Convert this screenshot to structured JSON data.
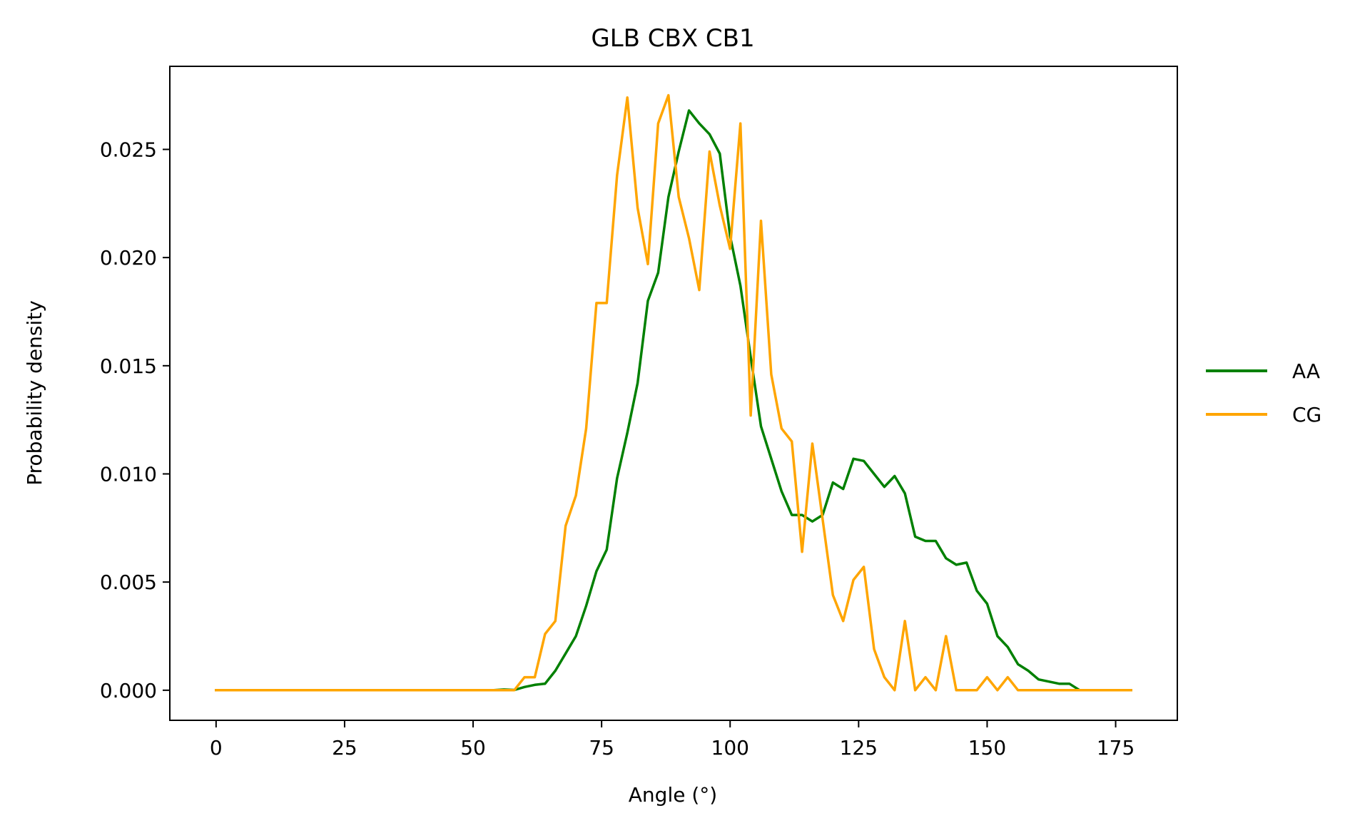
{
  "chart_data": {
    "type": "line",
    "title": "GLB CBX CB1",
    "xlabel": "Angle (°)",
    "ylabel": "Probability density",
    "xlim": [
      -9,
      187
    ],
    "ylim": [
      -0.00139,
      0.02884
    ],
    "xticks": [
      0,
      25,
      50,
      75,
      100,
      125,
      150,
      175
    ],
    "yticks": [
      0.0,
      0.005,
      0.01,
      0.015,
      0.02,
      0.025
    ],
    "ytick_labels": [
      "0.000",
      "0.005",
      "0.010",
      "0.015",
      "0.020",
      "0.025"
    ],
    "grid": false,
    "legend": "right-outside",
    "x": [
      0,
      2,
      4,
      6,
      8,
      10,
      12,
      14,
      16,
      18,
      20,
      22,
      24,
      26,
      28,
      30,
      32,
      34,
      36,
      38,
      40,
      42,
      44,
      46,
      48,
      50,
      52,
      54,
      56,
      58,
      60,
      62,
      64,
      66,
      68,
      70,
      72,
      74,
      76,
      78,
      80,
      82,
      84,
      86,
      88,
      90,
      92,
      94,
      96,
      98,
      100,
      102,
      104,
      106,
      108,
      110,
      112,
      114,
      116,
      118,
      120,
      122,
      124,
      126,
      128,
      130,
      132,
      134,
      136,
      138,
      140,
      142,
      144,
      146,
      148,
      150,
      152,
      154,
      156,
      158,
      160,
      162,
      164,
      166,
      168,
      170,
      172,
      174,
      176,
      178
    ],
    "series": [
      {
        "name": "AA",
        "color": "#008000",
        "values": [
          0,
          0,
          0,
          0,
          0,
          0,
          0,
          0,
          0,
          0,
          0,
          0,
          0,
          0,
          0,
          0,
          0,
          0,
          0,
          0,
          0,
          0,
          0,
          0,
          0,
          0,
          0,
          0,
          3e-05,
          1e-05,
          0.00015,
          0.00025,
          0.0003,
          0.0009,
          0.0017,
          0.0025,
          0.0039,
          0.0055,
          0.0065,
          0.0098,
          0.0119,
          0.0142,
          0.018,
          0.0193,
          0.0228,
          0.0249,
          0.0268,
          0.0262,
          0.0257,
          0.0248,
          0.021,
          0.0187,
          0.0154,
          0.0122,
          0.0107,
          0.0092,
          0.0081,
          0.0081,
          0.0078,
          0.0081,
          0.0096,
          0.0093,
          0.0107,
          0.0106,
          0.01,
          0.0094,
          0.0099,
          0.0091,
          0.0071,
          0.0069,
          0.0069,
          0.0061,
          0.0058,
          0.0059,
          0.0046,
          0.004,
          0.0025,
          0.002,
          0.0012,
          0.0009,
          0.0005,
          0.0004,
          0.0003,
          0.0003,
          0,
          0,
          0,
          0,
          0,
          0
        ]
      },
      {
        "name": "CG",
        "color": "#FFA500",
        "values": [
          0,
          0,
          0,
          0,
          0,
          0,
          0,
          0,
          0,
          0,
          0,
          0,
          0,
          0,
          0,
          0,
          0,
          0,
          0,
          0,
          0,
          0,
          0,
          0,
          0,
          0,
          0,
          0,
          0,
          0,
          0.0006,
          0.0006,
          0.0026,
          0.0032,
          0.0076,
          0.009,
          0.0121,
          0.0179,
          0.0179,
          0.0238,
          0.0274,
          0.0223,
          0.0197,
          0.0262,
          0.0275,
          0.0228,
          0.0209,
          0.0185,
          0.0249,
          0.0224,
          0.0204,
          0.0262,
          0.0127,
          0.0217,
          0.0146,
          0.0121,
          0.0115,
          0.0064,
          0.0114,
          0.0079,
          0.0044,
          0.0032,
          0.0051,
          0.0057,
          0.0019,
          0.0006,
          0,
          0.0032,
          0,
          0.0006,
          0,
          0.0025,
          0,
          0,
          0,
          0.0006,
          0,
          0.0006,
          0,
          0,
          0,
          0,
          0,
          0,
          0,
          0,
          0,
          0,
          0,
          0
        ]
      }
    ]
  }
}
